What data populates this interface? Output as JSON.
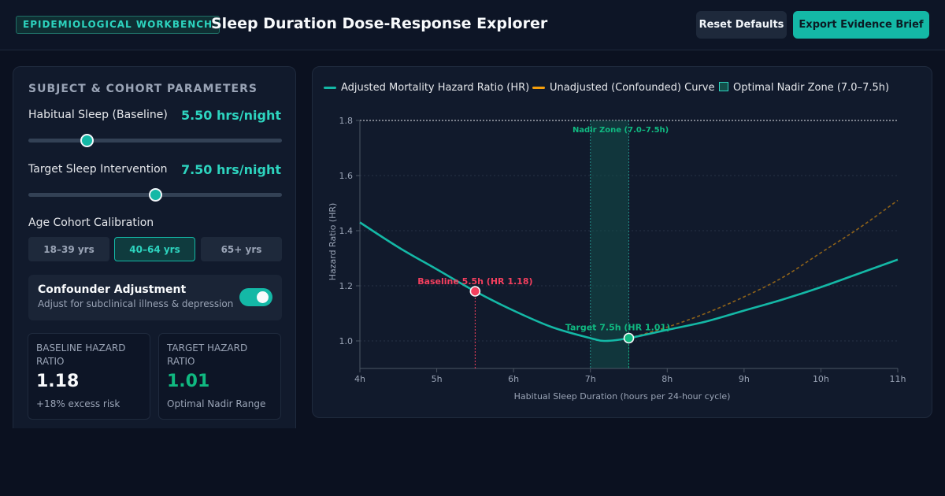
{
  "header": {
    "badge": "EPIDEMIOLOGICAL WORKBENCH",
    "title": "Sleep Duration Dose-Response Explorer",
    "reset_label": "Reset Defaults",
    "export_label": "Export Evidence Brief"
  },
  "controls": {
    "section_title": "SUBJECT & COHORT PARAMETERS",
    "baseline": {
      "label": "Habitual Sleep (Baseline)",
      "value_text": "5.50 hrs/night",
      "value": 5.5,
      "fraction": 0.23
    },
    "target": {
      "label": "Target Sleep Intervention",
      "value_text": "7.50 hrs/night",
      "value": 7.5,
      "fraction": 0.5
    },
    "age": {
      "label": "Age Cohort Calibration",
      "options": [
        "18–39 yrs",
        "40–64 yrs",
        "65+ yrs"
      ],
      "selected": "40–64 yrs"
    },
    "confounder": {
      "title": "Confounder Adjustment",
      "subtitle": "Adjust for subclinical illness & depression",
      "enabled": true
    }
  },
  "stats": {
    "baseline": {
      "label": "BASELINE HAZARD RATIO",
      "value": "1.18",
      "sub": "+18% excess risk"
    },
    "target": {
      "label": "TARGET HAZARD RATIO",
      "value": "1.01",
      "sub": "Optimal Nadir Range"
    }
  },
  "colors": {
    "accent": "#14b8a6",
    "unadjusted": "#f59e0b",
    "baseline_marker": "#f43f5e",
    "target_marker": "#10b981",
    "zone_fill": "#134e4a"
  },
  "chart_data": {
    "type": "line",
    "legend": [
      "Adjusted Mortality Hazard Ratio (HR)",
      "Unadjusted (Confounded) Curve",
      "Optimal Nadir Zone (7.0–7.5h)"
    ],
    "xlabel": "Habitual Sleep Duration (hours per 24-hour cycle)",
    "ylabel": "Hazard Ratio (HR)",
    "xlim": [
      4,
      11
    ],
    "ylim": [
      0.9,
      1.8
    ],
    "xticks": [
      4,
      5,
      6,
      7,
      8,
      9,
      10,
      11
    ],
    "xtick_labels": [
      "4h",
      "5h",
      "6h",
      "7h",
      "8h",
      "9h",
      "10h",
      "11h"
    ],
    "yticks": [
      1.0,
      1.2,
      1.4,
      1.6,
      1.8
    ],
    "ytick_labels": [
      "1.0",
      "1.2",
      "1.4",
      "1.6",
      "1.8"
    ],
    "series": [
      {
        "name": "Adjusted Mortality Hazard Ratio (HR)",
        "x": [
          4,
          4.5,
          5,
          5.5,
          6,
          6.5,
          7,
          7.2,
          7.5,
          8,
          8.5,
          9,
          9.5,
          10,
          10.5,
          11
        ],
        "y": [
          1.43,
          1.34,
          1.26,
          1.18,
          1.11,
          1.05,
          1.01,
          1.0,
          1.01,
          1.04,
          1.07,
          1.11,
          1.15,
          1.195,
          1.245,
          1.295
        ]
      },
      {
        "name": "Unadjusted (Confounded) Curve",
        "x": [
          7.5,
          8,
          8.5,
          9,
          9.5,
          10,
          10.5,
          11
        ],
        "y": [
          1.01,
          1.05,
          1.1,
          1.16,
          1.23,
          1.32,
          1.41,
          1.51
        ]
      }
    ],
    "nadir_zone": {
      "from": 7.0,
      "to": 7.5,
      "label": "Nadir Zone (7.0–7.5h)"
    },
    "reference_line": 1.8,
    "annotations": [
      {
        "x": 5.5,
        "y": 1.18,
        "label": "Baseline 5.5h (HR 1.18)"
      },
      {
        "x": 7.5,
        "y": 1.01,
        "label": "Target 7.5h (HR 1.01)"
      }
    ]
  }
}
